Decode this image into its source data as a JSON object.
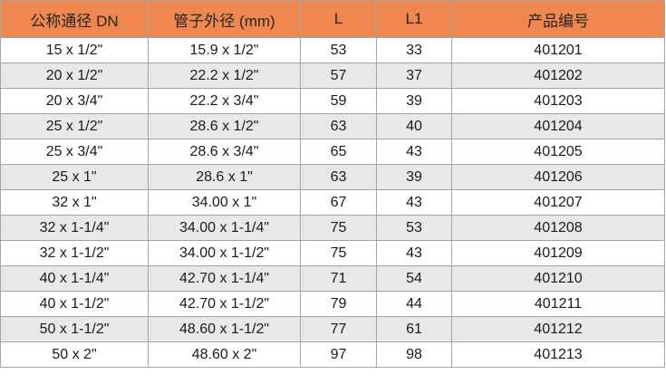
{
  "colors": {
    "header_bg": "#F0874E",
    "header_text": "#262626",
    "alt_row_bg": "#E8E8E9",
    "border_color": "#A6A6A6",
    "cell_text": "#1A1A1A"
  },
  "table": {
    "columns": [
      "公称通径 DN",
      "管子外径 (mm)",
      "L",
      "L1",
      "产品编号"
    ],
    "rows": [
      [
        "15 x 1/2\"",
        "15.9 x 1/2\"",
        "53",
        "33",
        "401201"
      ],
      [
        "20 x 1/2\"",
        "22.2 x 1/2\"",
        "57",
        "37",
        "401202"
      ],
      [
        "20 x 3/4\"",
        "22.2 x 3/4\"",
        "59",
        "39",
        "401203"
      ],
      [
        "25 x 1/2\"",
        "28.6 x 1/2\"",
        "63",
        "40",
        "401204"
      ],
      [
        "25 x 3/4\"",
        "28.6 x 3/4\"",
        "65",
        "43",
        "401205"
      ],
      [
        "25 x 1\"",
        "28.6 x 1\"",
        "63",
        "39",
        "401206"
      ],
      [
        "32 x 1\"",
        "34.00 x 1\"",
        "67",
        "43",
        "401207"
      ],
      [
        "32 x 1-1/4\"",
        "34.00 x 1-1/4\"",
        "75",
        "53",
        "401208"
      ],
      [
        "32 x 1-1/2\"",
        "34.00 x 1-1/2\"",
        "75",
        "43",
        "401209"
      ],
      [
        "40 x 1-1/4\"",
        "42.70 x 1-1/4\"",
        "71",
        "54",
        "401210"
      ],
      [
        "40 x 1-1/2\"",
        "42.70 x 1-1/2\"",
        "79",
        "44",
        "401211"
      ],
      [
        "50 x 1-1/2\"",
        "48.60 x 1-1/2\"",
        "77",
        "61",
        "401212"
      ],
      [
        "50 x 2\"",
        "48.60 x 2\"",
        "97",
        "98",
        "401213"
      ]
    ]
  }
}
